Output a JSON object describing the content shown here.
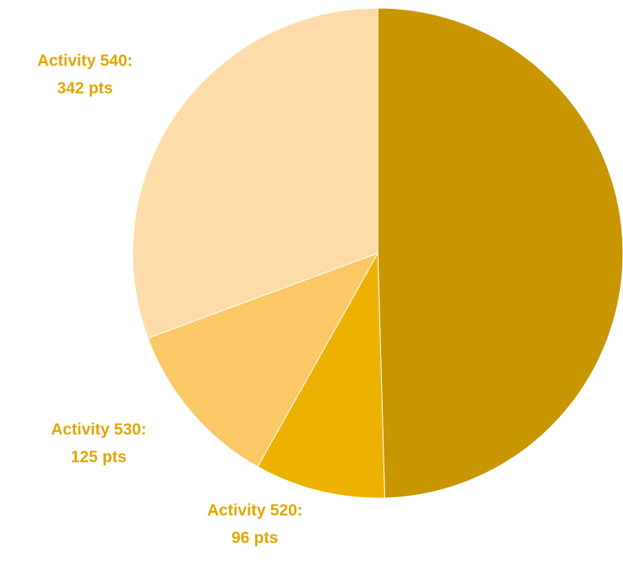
{
  "chart_data": {
    "type": "pie",
    "categories": [
      null,
      "Activity 520:",
      "Activity 530:",
      "Activity 540:"
    ],
    "values": [
      553,
      96,
      125,
      342
    ],
    "value_labels": [
      null,
      "96 pts",
      "125 pts",
      "342 pts"
    ],
    "colors": [
      "#C89600",
      "#EDB200",
      "#FBC866",
      "#FDDCA9"
    ]
  }
}
